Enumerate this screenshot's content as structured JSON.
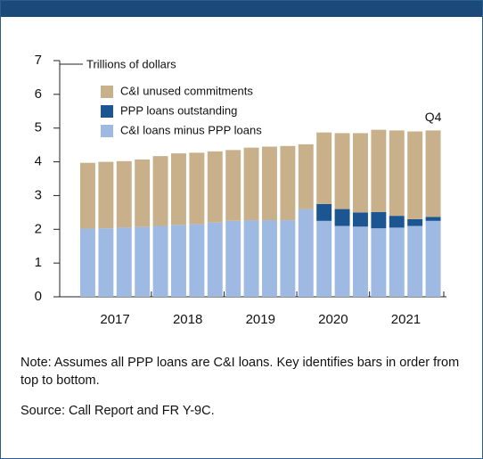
{
  "chart_data": {
    "type": "stacked-bar",
    "y_label": "Trillions of dollars",
    "annotation": "Q4",
    "categories": [
      null,
      null,
      null,
      null,
      null,
      null,
      null,
      null,
      null,
      null,
      null,
      null,
      null,
      null,
      null,
      null,
      null,
      null,
      null,
      null
    ],
    "x_groups": [
      "2017",
      "2018",
      "2019",
      "2020",
      "2021"
    ],
    "series": [
      {
        "name": "C&I unused commitments",
        "color": "#c8b08b",
        "values": [
          1.95,
          1.97,
          1.97,
          2.0,
          2.07,
          2.12,
          2.12,
          2.11,
          2.1,
          2.15,
          2.18,
          2.2,
          1.92,
          2.12,
          2.25,
          2.35,
          2.44,
          2.53,
          2.6,
          2.56
        ]
      },
      {
        "name": "PPP loans outstanding",
        "color": "#1b5592",
        "values": [
          0,
          0,
          0,
          0,
          0,
          0,
          0,
          0,
          0,
          0,
          0,
          0,
          0,
          0.5,
          0.5,
          0.42,
          0.48,
          0.35,
          0.2,
          0.12
        ]
      },
      {
        "name": "C&I loans minus PPP loans",
        "color": "#9ebae2",
        "values": [
          2.02,
          2.03,
          2.05,
          2.07,
          2.1,
          2.13,
          2.15,
          2.2,
          2.25,
          2.27,
          2.27,
          2.27,
          2.6,
          2.25,
          2.1,
          2.08,
          2.03,
          2.05,
          2.1,
          2.25
        ]
      }
    ],
    "ylim": [
      0,
      7
    ],
    "yticks": [
      0,
      1,
      2,
      3,
      4,
      5,
      6,
      7
    ]
  },
  "note": "Note: Assumes all PPP loans are C&I loans. Key identifies bars in order from top to bottom.",
  "source": "Source: Call Report and FR Y-9C."
}
